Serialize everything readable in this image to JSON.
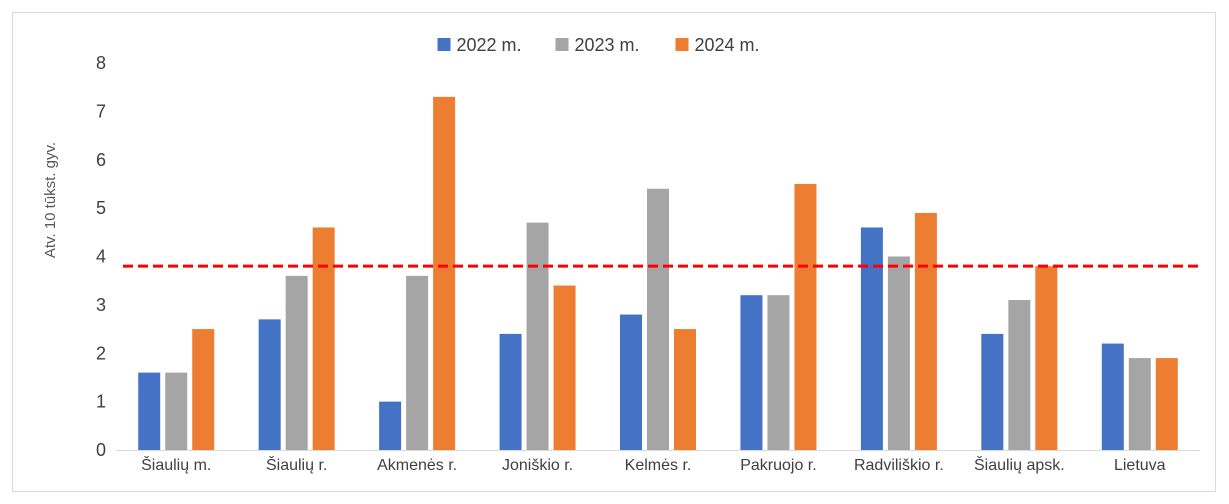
{
  "chart_data": {
    "type": "bar",
    "title": "",
    "xlabel": "",
    "ylabel": "Atv. 10 tūkst. gyv.",
    "ylim": [
      0,
      8
    ],
    "yticks": [
      0,
      1,
      2,
      3,
      4,
      5,
      6,
      7,
      8
    ],
    "grid": false,
    "legend": "top-center",
    "categories": [
      "Šiaulių m.",
      "Šiaulių r.",
      "Akmenės r.",
      "Joniškio r.",
      "Kelmės r.",
      "Pakruojo r.",
      "Radviliškio r.",
      "Šiaulių apsk.",
      "Lietuva"
    ],
    "series": [
      {
        "name": "2022 m.",
        "color": "#4472c4",
        "values": [
          1.6,
          2.7,
          1.0,
          2.4,
          2.8,
          3.2,
          4.6,
          2.4,
          2.2
        ]
      },
      {
        "name": "2023 m.",
        "color": "#a5a5a5",
        "values": [
          1.6,
          3.6,
          3.6,
          4.7,
          5.4,
          3.2,
          4.0,
          3.1,
          1.9
        ]
      },
      {
        "name": "2024 m.",
        "color": "#ed7d31",
        "values": [
          2.5,
          4.6,
          7.3,
          3.4,
          2.5,
          5.5,
          4.9,
          3.8,
          1.9
        ]
      }
    ],
    "reference_line": {
      "value": 3.8,
      "color": "#ff0000",
      "style": "dashed"
    }
  }
}
